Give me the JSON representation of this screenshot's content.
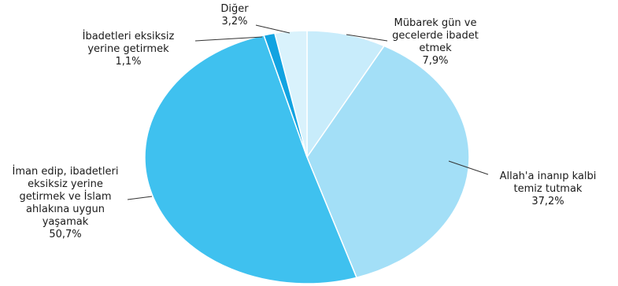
{
  "chart_data": {
    "type": "pie",
    "title": "",
    "start_angle_deg": 0,
    "direction": "clockwise",
    "legend": "none",
    "slices": [
      {
        "label_lines": [
          "Mübarek gün ve",
          "gecelerde ibadet",
          "etmek"
        ],
        "value": 7.9,
        "value_label": "7,9%",
        "color": "#c8ecfb"
      },
      {
        "label_lines": [
          "Allah'a inanıp kalbi",
          "temiz tutmak"
        ],
        "value": 37.2,
        "value_label": "37,2%",
        "color": "#a3dff7"
      },
      {
        "label_lines": [
          "İman edip, ibadetleri",
          "eksiksiz yerine",
          "getirmek ve  İslam",
          "ahlakına uygun",
          "yaşamak"
        ],
        "value": 50.7,
        "value_label": "50,7%",
        "color": "#3fc1ef"
      },
      {
        "label_lines": [
          "İbadetleri eksiksiz",
          "yerine getirmek"
        ],
        "value": 1.1,
        "value_label": "1,1%",
        "color": "#12a3e1"
      },
      {
        "label_lines": [
          "Diğer"
        ],
        "value": 3.2,
        "value_label": "3,2%",
        "color": "#d9f2fc"
      }
    ]
  }
}
